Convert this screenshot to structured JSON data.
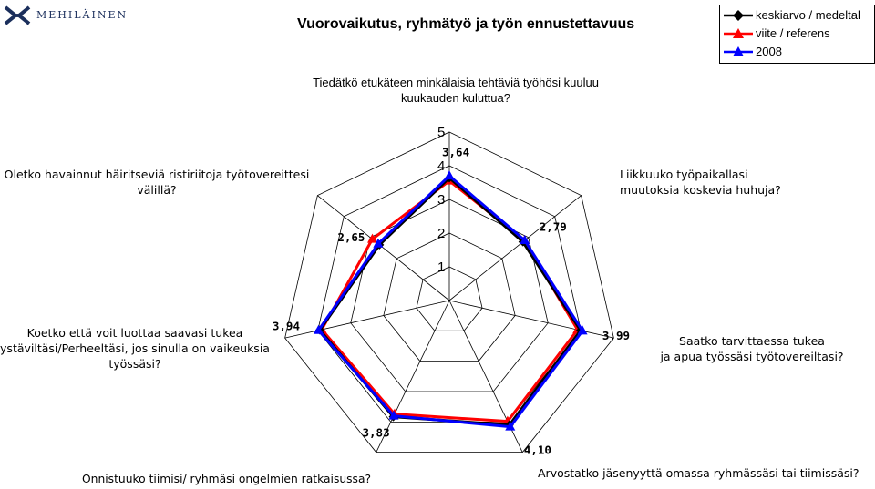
{
  "logo": {
    "text": "MEHILÄINEN"
  },
  "chart_data": {
    "type": "radar",
    "title": "Vuorovaikutus, ryhmätyö ja työn ennustettavuus",
    "axes": [
      "Tiedätkö etukäteen minkälaisia tehtäviä työhösi kuuluu kuukauden kuluttua?",
      "Liikkuuko työpaikallasi muutoksia koskevia huhuja?",
      "Saatko tarvittaessa tukea ja apua työssäsi työtovereiltasi?",
      "Arvostatko jäsenyyttä omassa ryhmässäsi tai tiimissäsi?",
      "Onnistuuko tiimisi/ ryhmäsi ongelmien ratkaisussa?",
      "Koetko että voit luottaa saavasi tukea ystäviltäsi/Perheeltäsi, jos sinulla on vaikeuksia työssäsi?",
      "Oletko havainnut häiritseviä ristiriitoja työtovereittesi välillä?"
    ],
    "axis_label_lines": [
      [
        "Tiedätkö etukäteen minkälaisia tehtäviä työhösi kuuluu",
        "kuukauden kuluttua?"
      ],
      [
        "Liikkuuko työpaikallasi",
        "muutoksia koskevia huhuja?"
      ],
      [
        "Saatko tarvittaessa tukea",
        "ja apua työssäsi työtovereiltasi?"
      ],
      [
        "Arvostatko jäsenyyttä omassa ryhmässäsi tai tiimissäsi?"
      ],
      [
        "Onnistuuko tiimisi/ ryhmäsi ongelmien ratkaisussa?"
      ],
      [
        "Koetko että voit luottaa saavasi tukea",
        "ystäviltäsi/Perheeltäsi, jos sinulla on vaikeuksia",
        "työssäsi?"
      ],
      [
        "Oletko havainnut häiritseviä ristiriitoja työtovereittesi",
        "välillä?"
      ]
    ],
    "scale_ticks": [
      "1",
      "2",
      "3",
      "4",
      "5"
    ],
    "range": [
      0,
      5
    ],
    "grid": true,
    "legend_position": "top-right",
    "series": [
      {
        "name": "keskiarvo / medeltal",
        "color": "#000000",
        "marker": "diamond",
        "values": [
          3.64,
          2.79,
          3.99,
          4.1,
          3.83,
          3.94,
          2.65
        ]
      },
      {
        "name": "viite / referens",
        "color": "#ff0000",
        "marker": "triangle",
        "values": [
          3.55,
          2.85,
          3.9,
          3.98,
          3.74,
          3.88,
          2.92
        ]
      },
      {
        "name": "2008",
        "color": "#0000ff",
        "marker": "triangle",
        "values": [
          3.7,
          2.86,
          4.05,
          4.16,
          3.8,
          3.98,
          2.7
        ]
      }
    ],
    "data_labels": [
      "3,64",
      "2,79",
      "3,99",
      "4,10",
      "3,83",
      "3,94",
      "2,65"
    ]
  }
}
